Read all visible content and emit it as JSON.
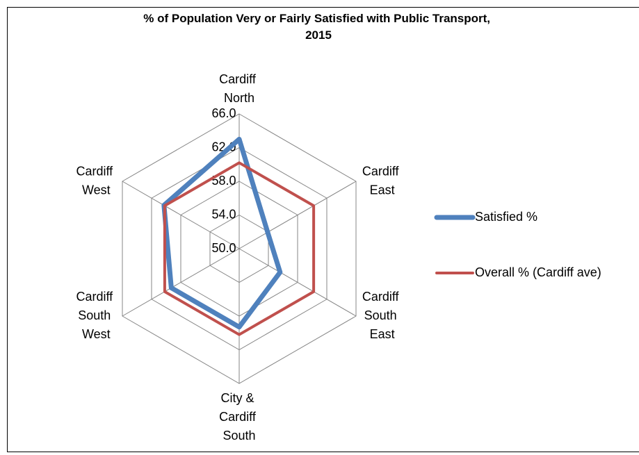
{
  "chart_data": {
    "type": "radar",
    "title": "% of Population Very or Fairly Satisfied with Public Transport, 2015",
    "categories": [
      "Cardiff North",
      "Cardiff East",
      "Cardiff South East",
      "City & Cardiff South",
      "Cardiff South West",
      "Cardiff West"
    ],
    "series": [
      {
        "name": "Satisfied %",
        "color": "#4f81bd",
        "values": [
          63.0,
          53.9,
          55.6,
          59.3,
          59.3,
          60.3
        ]
      },
      {
        "name": "Overall % (Cardiff ave)",
        "color": "#c0504d",
        "values": [
          60.2,
          60.2,
          60.2,
          60.2,
          60.2,
          60.2
        ]
      }
    ],
    "ylim": [
      50,
      66
    ],
    "yticks": [
      {
        "value": 50,
        "label": "50.0"
      },
      {
        "value": 54,
        "label": "54.0"
      },
      {
        "value": 58,
        "label": "58.0"
      },
      {
        "value": 62,
        "label": "62.0"
      },
      {
        "value": 66,
        "label": "66.0"
      }
    ],
    "grid": true,
    "legend": "right"
  }
}
